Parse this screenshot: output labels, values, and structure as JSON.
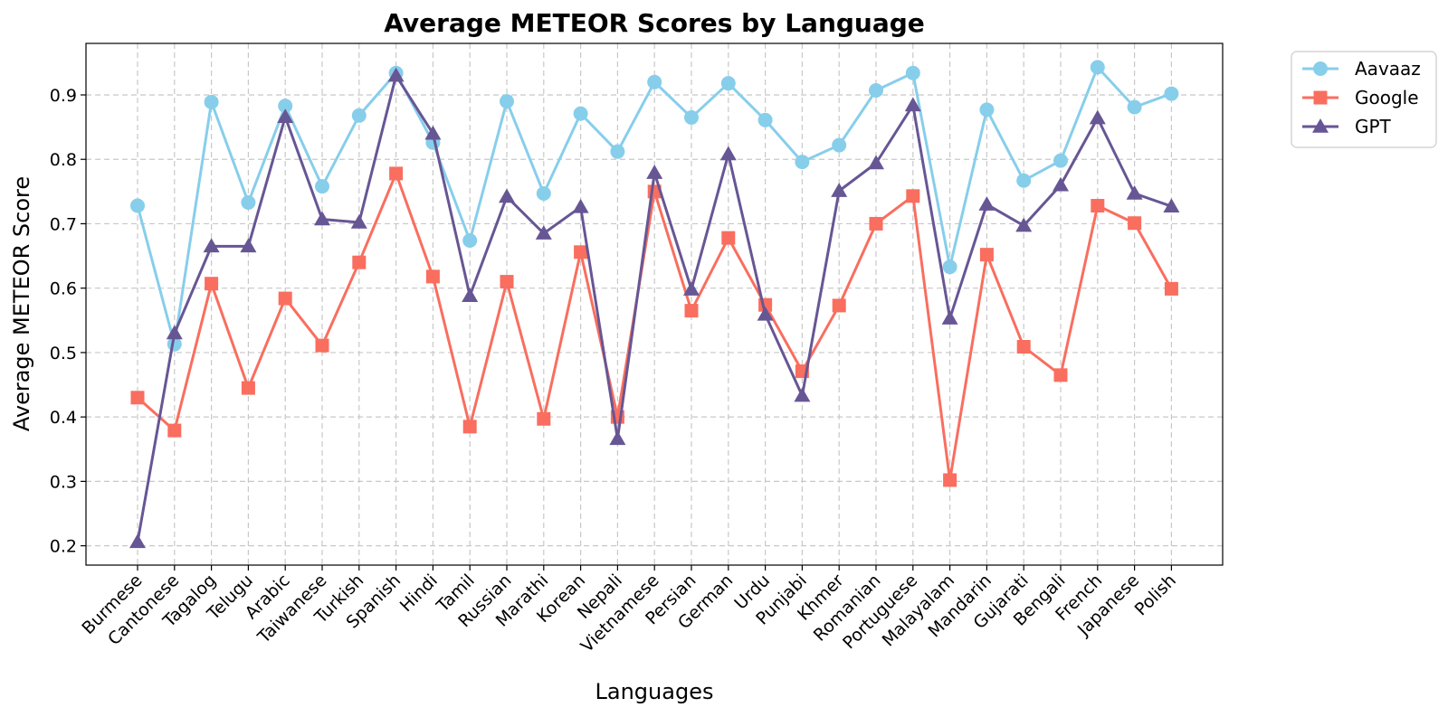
{
  "chart_data": {
    "type": "line",
    "title": "Average METEOR Scores by Language",
    "xlabel": "Languages",
    "ylabel": "Average METEOR Score",
    "categories": [
      "Burmese",
      "Cantonese",
      "Tagalog",
      "Telugu",
      "Arabic",
      "Taiwanese",
      "Turkish",
      "Spanish",
      "Hindi",
      "Tamil",
      "Russian",
      "Marathi",
      "Korean",
      "Nepali",
      "Vietnamese",
      "Persian",
      "German",
      "Urdu",
      "Punjabi",
      "Khmer",
      "Romanian",
      "Portuguese",
      "Malayalam",
      "Mandarin",
      "Gujarati",
      "Bengali",
      "French",
      "Japanese",
      "Polish"
    ],
    "ylim": [
      0.17,
      0.98
    ],
    "yticks": [
      0.2,
      0.3,
      0.4,
      0.5,
      0.6,
      0.7,
      0.8,
      0.9
    ],
    "grid": true,
    "legend_position": "outside-top-right",
    "series": [
      {
        "name": "Aavaaz",
        "color": "#87ceeb",
        "marker": "circle",
        "values": [
          0.728,
          0.513,
          0.889,
          0.733,
          0.883,
          0.758,
          0.868,
          0.934,
          0.826,
          0.674,
          0.89,
          0.747,
          0.871,
          0.812,
          0.92,
          0.865,
          0.918,
          0.861,
          0.796,
          0.822,
          0.907,
          0.934,
          0.633,
          0.877,
          0.767,
          0.798,
          0.943,
          0.881,
          0.902
        ]
      },
      {
        "name": "Google",
        "color": "#f96e5f",
        "marker": "square",
        "values": [
          0.43,
          0.379,
          0.607,
          0.445,
          0.584,
          0.511,
          0.64,
          0.778,
          0.618,
          0.385,
          0.61,
          0.397,
          0.656,
          0.4,
          0.75,
          0.565,
          0.678,
          0.574,
          0.471,
          0.573,
          0.7,
          0.743,
          0.302,
          0.652,
          0.509,
          0.465,
          0.728,
          0.701,
          0.599
        ]
      },
      {
        "name": "GPT",
        "color": "#675694",
        "marker": "triangle",
        "values": [
          0.206,
          0.53,
          0.665,
          0.665,
          0.866,
          0.707,
          0.702,
          0.93,
          0.84,
          0.588,
          0.742,
          0.685,
          0.726,
          0.366,
          0.779,
          0.598,
          0.808,
          0.559,
          0.433,
          0.751,
          0.794,
          0.884,
          0.553,
          0.73,
          0.697,
          0.76,
          0.864,
          0.747,
          0.727
        ]
      }
    ]
  }
}
